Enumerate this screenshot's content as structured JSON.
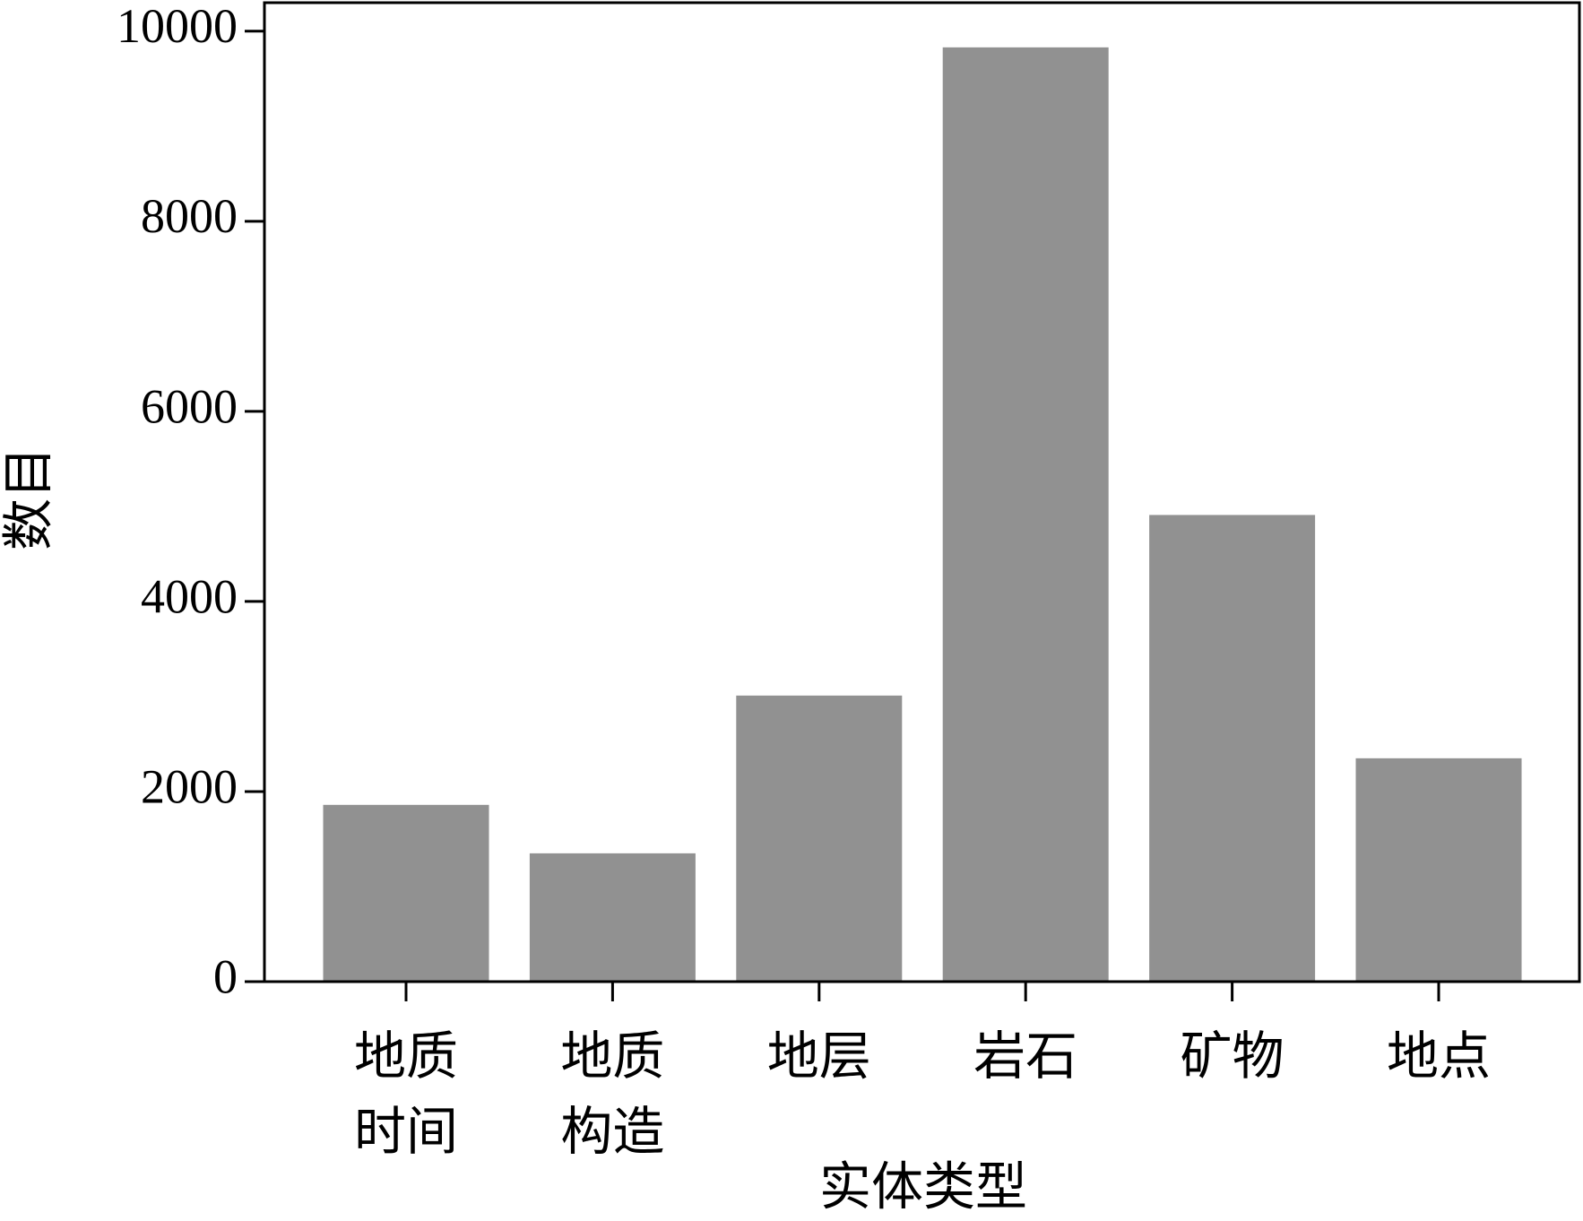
{
  "chart_data": {
    "type": "bar",
    "x_label": "实体类型",
    "y_label": "数目",
    "categories": [
      "地质时间",
      "地质构造",
      "地层",
      "岩石",
      "矿物",
      "地点"
    ],
    "values": [
      1860,
      1350,
      3010,
      9830,
      4910,
      2350
    ],
    "color": "#919191",
    "ylim": [
      0,
      10300
    ],
    "yticks": [
      0,
      2000,
      4000,
      6000,
      8000,
      10000
    ],
    "grid": false
  }
}
